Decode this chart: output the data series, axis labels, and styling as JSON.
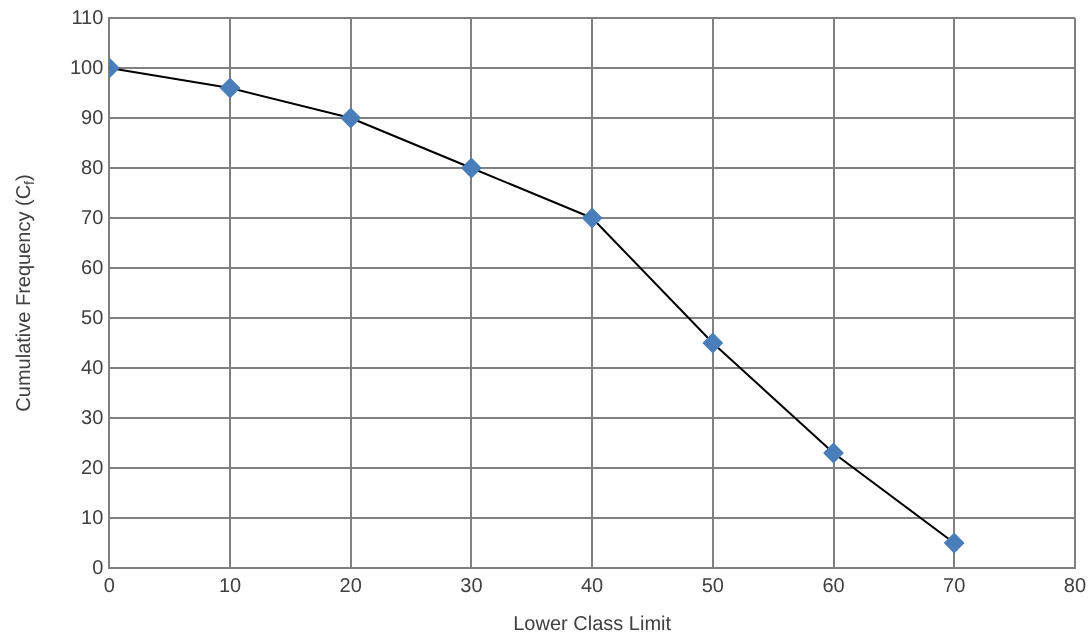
{
  "chart_data": {
    "type": "line",
    "xlabel": "Lower Class Limit",
    "ylabel": "Cumulative Frequency (C$_{f}$)",
    "x": [
      0,
      10,
      20,
      30,
      40,
      50,
      60,
      70
    ],
    "series": [
      {
        "color": "#4a7ebb",
        "values": [
          100,
          96,
          90,
          80,
          70,
          45,
          23,
          5
        ]
      }
    ],
    "xlim": [
      0,
      80
    ],
    "xticks": [
      0,
      10,
      20,
      30,
      40,
      50,
      60,
      70,
      80
    ],
    "ylim": [
      0,
      110
    ],
    "yticks": [
      0,
      10,
      20,
      30,
      40,
      50,
      60,
      70,
      80,
      90,
      100,
      110
    ],
    "grid": true,
    "legend": false,
    "marker": "diamond",
    "line_style": "solid"
  }
}
